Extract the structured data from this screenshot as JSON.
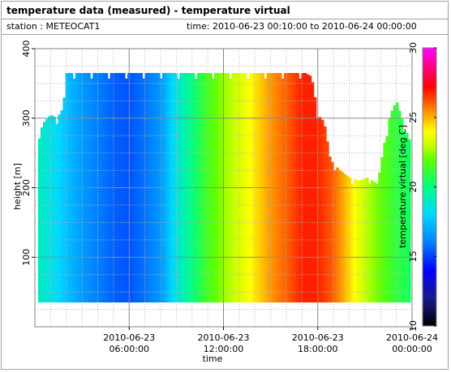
{
  "header": {
    "title": "temperature data (measured) - temperature virtual",
    "station": "station : METEOCAT1",
    "time_range": "time: 2010-06-23 00:10:00 to 2010-06-24 00:00:00"
  },
  "chart_data": {
    "type": "heatmap",
    "title": "temperature data (measured) - temperature virtual",
    "xlabel": "time",
    "ylabel": "height [m]",
    "colorbar_label": "temperature virtual [deg C]",
    "x_ticks": [
      {
        "hour": 6,
        "line1": "2010-06-23",
        "line2": "06:00:00"
      },
      {
        "hour": 12,
        "line1": "2010-06-23",
        "line2": "12:00:00"
      },
      {
        "hour": 18,
        "line1": "2010-06-23",
        "line2": "18:00:00"
      },
      {
        "hour": 24,
        "line1": "2010-06-24",
        "line2": "00:00:00"
      }
    ],
    "xlim_hours": [
      0,
      24
    ],
    "y_ticks": [
      100,
      200,
      300,
      400
    ],
    "ylim": [
      0,
      400
    ],
    "colorbar_ticks": [
      10,
      15,
      20,
      25,
      30
    ],
    "color_range": [
      10,
      30
    ],
    "grid": true,
    "heat_base_height": 35,
    "temperature_profile": [
      {
        "hour": 0.2,
        "temp": 19.0
      },
      {
        "hour": 1.0,
        "temp": 18.5
      },
      {
        "hour": 2.0,
        "temp": 17.5
      },
      {
        "hour": 3.0,
        "temp": 16.6
      },
      {
        "hour": 4.0,
        "temp": 16.0
      },
      {
        "hour": 5.0,
        "temp": 15.5
      },
      {
        "hour": 6.0,
        "temp": 15.3
      },
      {
        "hour": 7.0,
        "temp": 15.8
      },
      {
        "hour": 8.0,
        "temp": 16.5
      },
      {
        "hour": 9.0,
        "temp": 18.5
      },
      {
        "hour": 10.0,
        "temp": 20.0
      },
      {
        "hour": 11.0,
        "temp": 21.5
      },
      {
        "hour": 12.0,
        "temp": 22.5
      },
      {
        "hour": 13.0,
        "temp": 23.3
      },
      {
        "hour": 14.0,
        "temp": 24.3
      },
      {
        "hour": 15.0,
        "temp": 25.3
      },
      {
        "hour": 16.0,
        "temp": 26.0
      },
      {
        "hour": 17.0,
        "temp": 26.8
      },
      {
        "hour": 18.0,
        "temp": 26.8
      },
      {
        "hour": 19.0,
        "temp": 26.0
      },
      {
        "hour": 20.0,
        "temp": 24.5
      },
      {
        "hour": 21.0,
        "temp": 23.0
      },
      {
        "hour": 22.0,
        "temp": 22.0
      },
      {
        "hour": 23.0,
        "temp": 21.0
      },
      {
        "hour": 23.9,
        "temp": 20.5
      }
    ],
    "top_height_profile": [
      {
        "hour": 0.2,
        "height": 275
      },
      {
        "hour": 0.6,
        "height": 295
      },
      {
        "hour": 1.0,
        "height": 305
      },
      {
        "hour": 1.4,
        "height": 300
      },
      {
        "hour": 1.8,
        "height": 315
      },
      {
        "hour": 2.0,
        "height": 365
      },
      {
        "hour": 5.8,
        "height": 365
      },
      {
        "hour": 6.2,
        "height": 365
      },
      {
        "hour": 16.0,
        "height": 365
      },
      {
        "hour": 17.2,
        "height": 365
      },
      {
        "hour": 17.6,
        "height": 360
      },
      {
        "hour": 18.0,
        "height": 305
      },
      {
        "hour": 18.4,
        "height": 295
      },
      {
        "hour": 18.8,
        "height": 240
      },
      {
        "hour": 19.4,
        "height": 225
      },
      {
        "hour": 20.0,
        "height": 215
      },
      {
        "hour": 20.6,
        "height": 210
      },
      {
        "hour": 21.2,
        "height": 215
      },
      {
        "hour": 21.8,
        "height": 205
      },
      {
        "hour": 22.2,
        "height": 260
      },
      {
        "hour": 22.6,
        "height": 305
      },
      {
        "hour": 23.0,
        "height": 325
      },
      {
        "hour": 23.4,
        "height": 295
      },
      {
        "hour": 23.9,
        "height": 265
      }
    ]
  }
}
